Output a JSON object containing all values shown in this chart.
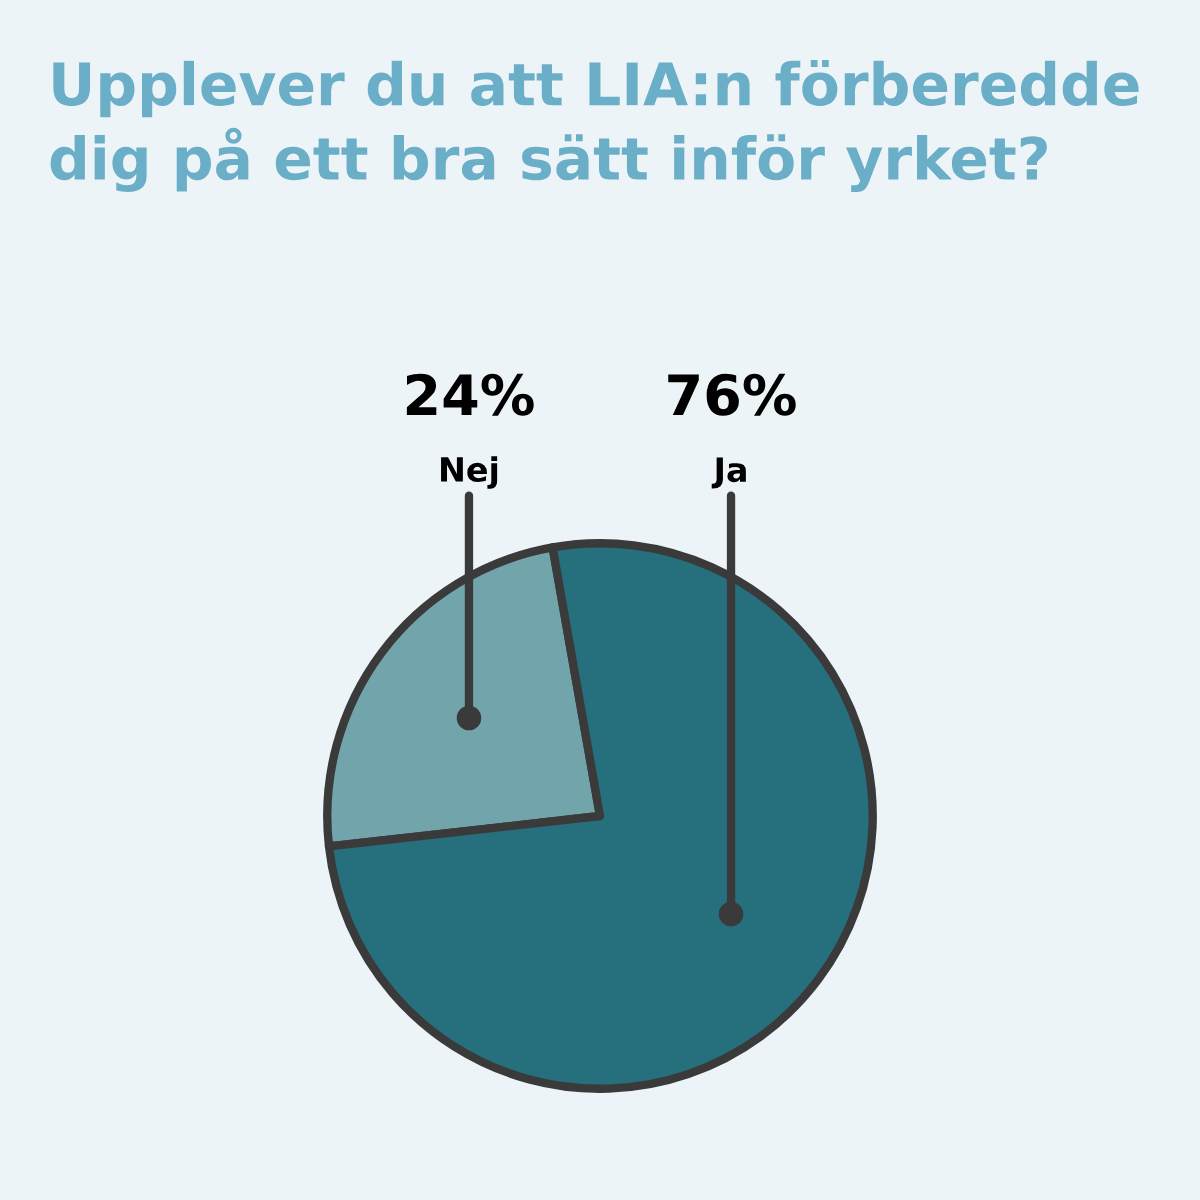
{
  "chart_data": {
    "type": "pie",
    "title": "Upplever du att LIA:n förberedde dig på ett bra sätt inför yrket?",
    "categories": [
      "Nej",
      "Ja"
    ],
    "values": [
      24,
      76
    ],
    "colors": [
      "#72a4ab",
      "#26707e"
    ],
    "value_labels": [
      "24%",
      "76%"
    ],
    "legend": false
  }
}
